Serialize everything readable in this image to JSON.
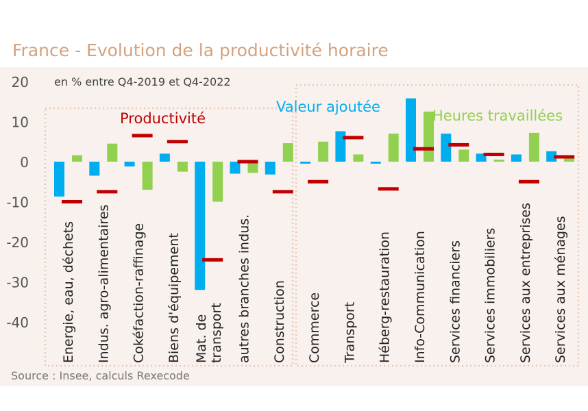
{
  "chart_data": {
    "type": "bar",
    "title": "France - Evolution de la productivité horaire",
    "subtitle": "en % entre Q4-2019 et Q4-2022",
    "source": "Source : Insee, calculs Rexecode",
    "ylim": [
      -40,
      20
    ],
    "yticks": [
      20,
      10,
      0,
      -10,
      -20,
      -30,
      -40
    ],
    "categories": [
      "Energie, eau, déchets",
      "Indus. agro-alimentaires",
      "Cokéfaction-raffinage",
      "Biens d'équipement",
      "Mat. de transport",
      "autres branches indus.",
      "Construction",
      "Commerce",
      "Transport",
      "Héberg-restauration",
      "Info-Communication",
      "Services financiers",
      "Services immobiliers",
      "Services aux entreprises",
      "Services aux ménages"
    ],
    "series": [
      {
        "name": "Valeur ajoutée",
        "color": "#00aeef",
        "kind": "bar",
        "values": [
          -8.7,
          -3.5,
          -1.2,
          2.0,
          -32.0,
          -3.0,
          -3.2,
          -0.5,
          7.6,
          -0.5,
          15.8,
          7.0,
          2.0,
          1.8,
          2.6
        ]
      },
      {
        "name": "Heures travaillées",
        "color": "#92d050",
        "kind": "bar",
        "values": [
          1.6,
          4.5,
          -7.0,
          -2.5,
          -10.0,
          -2.8,
          4.6,
          5.0,
          1.8,
          7.0,
          12.5,
          3.0,
          0.5,
          7.2,
          1.5
        ]
      },
      {
        "name": "Productivité",
        "color": "#c00000",
        "kind": "dash",
        "values": [
          -10.0,
          -7.5,
          6.5,
          5.0,
          -24.5,
          0.0,
          -7.5,
          -5.0,
          6.0,
          -6.8,
          3.2,
          4.2,
          1.8,
          -5.0,
          1.2
        ]
      }
    ],
    "annotations": {
      "productivite": "Productivité",
      "valeur_ajoutee": "Valeur ajoutée",
      "heures_travaillees": "Heures travaillées"
    },
    "colors": {
      "title": "#d4a27f",
      "panel": "#f8f1ee",
      "dotted_box": "#e8c9b9",
      "axis_text": "#555555",
      "label_text": "#222222"
    }
  }
}
